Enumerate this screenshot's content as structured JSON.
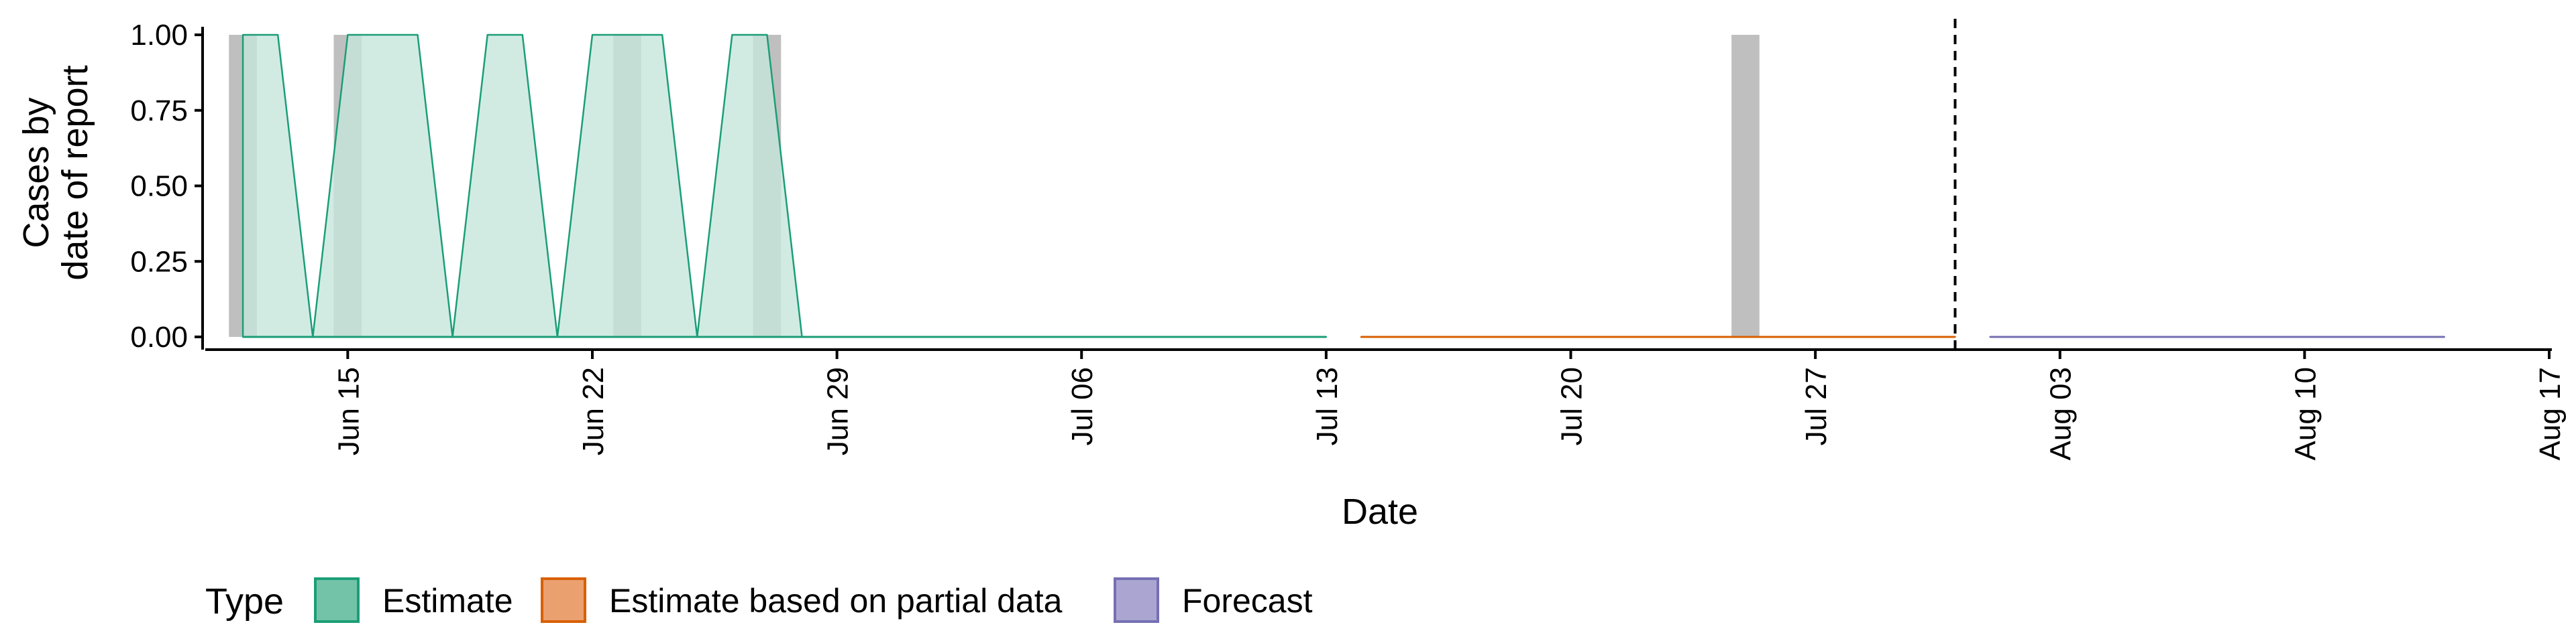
{
  "chart_data": {
    "type": "area",
    "title": "",
    "xlabel": "Date",
    "ylabel": [
      "Cases by",
      "date of report"
    ],
    "x_start": "2020-06-11",
    "x_end": "2020-08-17",
    "ylim": [
      0,
      1
    ],
    "y_ticks": [
      "0.00",
      "0.25",
      "0.50",
      "0.75",
      "1.00"
    ],
    "x_ticks": [
      {
        "date": "2020-06-15",
        "label": "Jun 15"
      },
      {
        "date": "2020-06-22",
        "label": "Jun 22"
      },
      {
        "date": "2020-06-29",
        "label": "Jun 29"
      },
      {
        "date": "2020-07-06",
        "label": "Jul 06"
      },
      {
        "date": "2020-07-13",
        "label": "Jul 13"
      },
      {
        "date": "2020-07-20",
        "label": "Jul 20"
      },
      {
        "date": "2020-07-27",
        "label": "Jul 27"
      },
      {
        "date": "2020-08-03",
        "label": "Aug 03"
      },
      {
        "date": "2020-08-10",
        "label": "Aug 10"
      },
      {
        "date": "2020-08-17",
        "label": "Aug 17"
      }
    ],
    "reported_cases": {
      "dates": [
        "2020-06-12",
        "2020-06-15",
        "2020-06-23",
        "2020-06-27",
        "2020-07-25"
      ],
      "values": [
        1,
        1,
        1,
        1,
        1
      ]
    },
    "forecast_start": "2020-07-31",
    "legend": {
      "title": "Type",
      "position": "bottom",
      "entries": [
        {
          "name": "Estimate",
          "fill": "#73c3a8",
          "stroke": "#1b9e77"
        },
        {
          "name": "Estimate based on partial data",
          "fill": "#eba070",
          "stroke": "#d95f02"
        },
        {
          "name": "Forecast",
          "fill": "#aaa6d1",
          "stroke": "#7570b3"
        }
      ]
    },
    "series": [
      {
        "name": "Estimate",
        "color": "#1b9e77",
        "fill": "#c5e6dc",
        "x": [
          "2020-06-12",
          "2020-06-13",
          "2020-06-14",
          "2020-06-15",
          "2020-06-16",
          "2020-06-17",
          "2020-06-18",
          "2020-06-19",
          "2020-06-20",
          "2020-06-21",
          "2020-06-22",
          "2020-06-23",
          "2020-06-24",
          "2020-06-25",
          "2020-06-26",
          "2020-06-27",
          "2020-06-28",
          "2020-06-29",
          "2020-07-13"
        ],
        "lower": [
          0,
          0,
          0,
          0,
          0,
          0,
          0,
          0,
          0,
          0,
          0,
          0,
          0,
          0,
          0,
          0,
          0,
          0,
          0
        ],
        "upper": [
          1,
          1,
          0,
          1,
          1,
          1,
          0,
          1,
          1,
          0,
          1,
          1,
          1,
          0,
          1,
          1,
          0,
          0,
          0
        ]
      },
      {
        "name": "Estimate based on partial data",
        "color": "#d95f02",
        "fill": "#f6d5bf",
        "x": [
          "2020-07-14",
          "2020-07-31"
        ],
        "lower": [
          0,
          0
        ],
        "upper": [
          0,
          0
        ]
      },
      {
        "name": "Forecast",
        "color": "#7570b3",
        "fill": "#d6d4e9",
        "x": [
          "2020-08-01",
          "2020-08-14"
        ],
        "lower": [
          0,
          0
        ],
        "upper": [
          0,
          0
        ]
      }
    ]
  }
}
